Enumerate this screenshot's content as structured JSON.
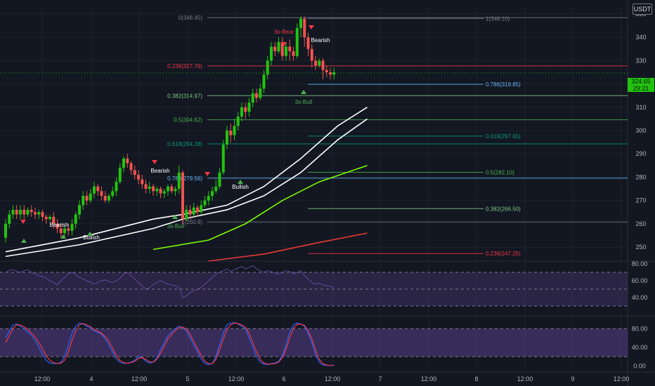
{
  "header": {
    "currency": "USDT"
  },
  "last_price": {
    "price": "324.65",
    "countdown": "29:21"
  },
  "chart_data": [
    {
      "type": "candlestick",
      "panel": "price",
      "y_axis": {
        "ticks": [
          250,
          260,
          270,
          280,
          290,
          300,
          310,
          320,
          330,
          340,
          350
        ],
        "range": [
          244,
          353
        ]
      },
      "x_axis": {
        "ticks": [
          "12:00",
          "4",
          "12:00",
          "5",
          "12:00",
          "6",
          "12:00",
          "7",
          "12:00",
          "8",
          "12:00",
          "9",
          "12:00"
        ]
      },
      "fib_left": [
        {
          "label": "0(348.45)",
          "value": 348.45,
          "color": "#787b86"
        },
        {
          "label": "0.236(327.76)",
          "value": 327.76,
          "color": "#f23645"
        },
        {
          "label": "0.382(314.97)",
          "value": 314.97,
          "color": "#81c784"
        },
        {
          "label": "0.5(304.62)",
          "value": 304.62,
          "color": "#4caf50"
        },
        {
          "label": "0.618(294.28)",
          "value": 294.28,
          "color": "#089981"
        },
        {
          "label": "0.786(279.56)",
          "value": 279.56,
          "color": "#64b5f6"
        },
        {
          "label": "1(260.8)",
          "value": 260.8,
          "color": "#787b86"
        }
      ],
      "fib_right": [
        {
          "label": "1(348.10)",
          "value": 348.1,
          "color": "#787b86"
        },
        {
          "label": "0.786(319.85)",
          "value": 319.85,
          "color": "#64b5f6"
        },
        {
          "label": "0.618(297.65)",
          "value": 297.65,
          "color": "#089981"
        },
        {
          "label": "0.5(282.10)",
          "value": 282.1,
          "color": "#4caf50"
        },
        {
          "label": "0.382(266.50)",
          "value": 266.5,
          "color": "#81c784"
        },
        {
          "label": "0.236(247.25)",
          "value": 247.25,
          "color": "#f23645"
        }
      ],
      "annotations": [
        {
          "text": "Bearish",
          "color": "#ffffff"
        },
        {
          "text": "Bullish",
          "color": "#ffffff"
        },
        {
          "text": "Bearish",
          "color": "#ffffff"
        },
        {
          "text": "3s-Bull",
          "color": "#4caf50"
        },
        {
          "text": "Bullish",
          "color": "#ffffff"
        },
        {
          "text": "3s-Bear",
          "color": "#f23645"
        },
        {
          "text": "Bearish",
          "color": "#ffffff"
        },
        {
          "text": "3s-Bull",
          "color": "#4caf50"
        }
      ],
      "candles": [
        [
          254,
          260,
          252,
          262
        ],
        [
          260,
          264,
          258,
          266
        ],
        [
          264,
          266,
          262,
          268
        ],
        [
          266,
          264,
          262,
          268
        ],
        [
          264,
          266,
          262,
          268
        ],
        [
          266,
          264,
          262,
          268
        ],
        [
          264,
          266,
          263,
          267
        ],
        [
          266,
          265,
          263,
          268
        ],
        [
          265,
          264,
          262,
          267
        ],
        [
          264,
          265,
          262,
          266
        ],
        [
          265,
          263,
          261,
          266
        ],
        [
          263,
          262,
          260,
          264
        ],
        [
          262,
          263,
          261,
          264
        ],
        [
          263,
          260,
          258,
          265
        ],
        [
          260,
          258,
          256,
          262
        ],
        [
          258,
          256,
          254,
          260
        ],
        [
          256,
          258,
          254,
          259
        ],
        [
          258,
          257,
          255,
          260
        ],
        [
          257,
          260,
          255,
          262
        ],
        [
          260,
          264,
          258,
          265
        ],
        [
          264,
          268,
          262,
          270
        ],
        [
          268,
          272,
          266,
          274
        ],
        [
          272,
          270,
          268,
          274
        ],
        [
          270,
          273,
          269,
          275
        ],
        [
          273,
          276,
          271,
          278
        ],
        [
          276,
          274,
          272,
          277
        ],
        [
          274,
          272,
          270,
          276
        ],
        [
          272,
          270,
          269,
          274
        ],
        [
          270,
          272,
          269,
          273
        ],
        [
          272,
          274,
          271,
          276
        ],
        [
          274,
          278,
          272,
          280
        ],
        [
          278,
          284,
          277,
          286
        ],
        [
          284,
          288,
          282,
          289
        ],
        [
          288,
          286,
          284,
          290
        ],
        [
          286,
          283,
          281,
          287
        ],
        [
          283,
          281,
          279,
          285
        ],
        [
          281,
          279,
          277,
          283
        ],
        [
          279,
          277,
          275,
          281
        ],
        [
          277,
          275,
          273,
          279
        ],
        [
          275,
          276,
          273,
          278
        ],
        [
          276,
          274,
          272,
          277
        ],
        [
          274,
          275,
          272,
          276
        ],
        [
          275,
          273,
          271,
          276
        ],
        [
          273,
          274,
          271,
          275
        ],
        [
          274,
          276,
          272,
          277
        ],
        [
          276,
          274,
          273,
          277
        ],
        [
          274,
          275,
          272,
          276
        ],
        [
          275,
          282,
          273,
          285
        ],
        [
          282,
          262,
          260,
          283
        ],
        [
          262,
          266,
          261,
          268
        ],
        [
          266,
          264,
          262,
          268
        ],
        [
          264,
          267,
          263,
          269
        ],
        [
          267,
          265,
          263,
          268
        ],
        [
          265,
          268,
          264,
          270
        ],
        [
          268,
          270,
          267,
          272
        ],
        [
          270,
          272,
          268,
          274
        ],
        [
          272,
          274,
          270,
          276
        ],
        [
          274,
          276,
          273,
          279
        ],
        [
          276,
          282,
          275,
          284
        ],
        [
          282,
          294,
          281,
          296
        ],
        [
          294,
          300,
          292,
          302
        ],
        [
          300,
          298,
          295,
          303
        ],
        [
          298,
          302,
          296,
          305
        ],
        [
          302,
          306,
          300,
          308
        ],
        [
          306,
          310,
          304,
          312
        ],
        [
          310,
          308,
          305,
          312
        ],
        [
          308,
          312,
          306,
          314
        ],
        [
          312,
          316,
          310,
          318
        ],
        [
          316,
          314,
          312,
          318
        ],
        [
          314,
          318,
          313,
          320
        ],
        [
          318,
          324,
          316,
          326
        ],
        [
          324,
          330,
          322,
          332
        ],
        [
          330,
          336,
          328,
          338
        ],
        [
          336,
          334,
          332,
          338
        ],
        [
          334,
          338,
          333,
          340
        ],
        [
          338,
          332,
          330,
          340
        ],
        [
          332,
          336,
          330,
          338
        ],
        [
          336,
          334,
          330,
          339
        ],
        [
          334,
          332,
          330,
          336
        ],
        [
          332,
          344,
          331,
          346
        ],
        [
          344,
          348,
          340,
          349
        ],
        [
          348,
          340,
          336,
          349
        ],
        [
          340,
          335,
          332,
          342
        ],
        [
          335,
          330,
          327,
          337
        ],
        [
          330,
          328,
          326,
          332
        ],
        [
          328,
          330,
          327,
          331
        ],
        [
          330,
          326,
          322,
          331
        ],
        [
          326,
          325,
          323,
          328
        ],
        [
          325,
          324,
          322,
          327
        ],
        [
          324,
          325,
          322,
          327
        ]
      ],
      "moving_averages": [
        {
          "name": "ma-white-1",
          "color": "#ffffff",
          "points": [
            [
              0,
              248
            ],
            [
              20,
              254
            ],
            [
              40,
              262
            ],
            [
              48,
              264
            ],
            [
              60,
              268
            ],
            [
              70,
              276
            ],
            [
              80,
              288
            ],
            [
              90,
              302
            ],
            [
              98,
              310
            ]
          ]
        },
        {
          "name": "ma-white-2",
          "color": "#ffffff",
          "points": [
            [
              0,
              246
            ],
            [
              20,
              251
            ],
            [
              40,
              258
            ],
            [
              48,
              262
            ],
            [
              60,
              266
            ],
            [
              70,
              272
            ],
            [
              80,
              282
            ],
            [
              90,
              296
            ],
            [
              98,
              305
            ]
          ]
        },
        {
          "name": "ma-green",
          "color": "#7cfc00",
          "points": [
            [
              40,
              249
            ],
            [
              55,
              253
            ],
            [
              65,
              260
            ],
            [
              75,
              270
            ],
            [
              85,
              278
            ],
            [
              98,
              285
            ]
          ]
        },
        {
          "name": "ma-red",
          "color": "#e53935",
          "points": [
            [
              55,
              244
            ],
            [
              70,
              247
            ],
            [
              85,
              252
            ],
            [
              98,
              256
            ]
          ]
        }
      ]
    },
    {
      "type": "line",
      "panel": "rsi",
      "y_axis": {
        "ticks": [
          40,
          60,
          80
        ],
        "range": [
          20,
          80
        ]
      },
      "bands": [
        {
          "value": 70
        },
        {
          "value": 50
        },
        {
          "value": 30
        }
      ],
      "series": [
        {
          "values": [
            70,
            72,
            73,
            71,
            70,
            72,
            73,
            70,
            68,
            66,
            65,
            63,
            60,
            58,
            55,
            60,
            64,
            68,
            70,
            67,
            64,
            62,
            60,
            58,
            56,
            58,
            60,
            61,
            59,
            58,
            60,
            63,
            68,
            70,
            66,
            62,
            58,
            54,
            50,
            52,
            55,
            58,
            60,
            58,
            56,
            55,
            54,
            52,
            40,
            42,
            46,
            48,
            50,
            52,
            56,
            60,
            64,
            68,
            70,
            72,
            74,
            71,
            73,
            75,
            77,
            74,
            76,
            78,
            74,
            72,
            70,
            72,
            71,
            69,
            68,
            70,
            72,
            71,
            68,
            70,
            72,
            66,
            62,
            58,
            56,
            57,
            55,
            54,
            53,
            52
          ]
        }
      ]
    },
    {
      "type": "line",
      "panel": "stoch",
      "y_axis": {
        "ticks": [
          0,
          40,
          80
        ],
        "range": [
          -10,
          100
        ]
      },
      "bands": [
        {
          "value": 80
        },
        {
          "value": 20
        }
      ],
      "series": [
        {
          "color": "#2962ff",
          "values": [
            60,
            75,
            88,
            90,
            85,
            80,
            72,
            65,
            55,
            40,
            25,
            12,
            6,
            5,
            5,
            8,
            20,
            45,
            70,
            85,
            92,
            90,
            85,
            82,
            75,
            72,
            68,
            58,
            45,
            30,
            15,
            8,
            5,
            6,
            8,
            12,
            20,
            18,
            10,
            6,
            8,
            18,
            35,
            50,
            65,
            72,
            80,
            85,
            82,
            75,
            60,
            45,
            30,
            15,
            5,
            3,
            5,
            20,
            45,
            70,
            88,
            92,
            93,
            90,
            85,
            80,
            60,
            40,
            20,
            8,
            4,
            3,
            5,
            6,
            10,
            22,
            45,
            72,
            88,
            92,
            90,
            85,
            70,
            50,
            25,
            8,
            2,
            1,
            1,
            2
          ]
        },
        {
          "color": "#f23645",
          "values": [
            50,
            65,
            80,
            88,
            88,
            84,
            78,
            70,
            62,
            50,
            36,
            22,
            12,
            7,
            5,
            6,
            12,
            30,
            55,
            75,
            88,
            91,
            88,
            84,
            78,
            74,
            70,
            63,
            52,
            38,
            22,
            12,
            7,
            6,
            7,
            10,
            16,
            18,
            14,
            9,
            8,
            14,
            28,
            42,
            58,
            68,
            76,
            82,
            83,
            79,
            68,
            52,
            37,
            22,
            10,
            5,
            5,
            14,
            35,
            58,
            78,
            88,
            92,
            91,
            88,
            83,
            70,
            50,
            30,
            14,
            6,
            4,
            4,
            5,
            8,
            18,
            36,
            60,
            80,
            89,
            90,
            87,
            76,
            58,
            34,
            14,
            5,
            2,
            1,
            1
          ]
        }
      ]
    }
  ]
}
